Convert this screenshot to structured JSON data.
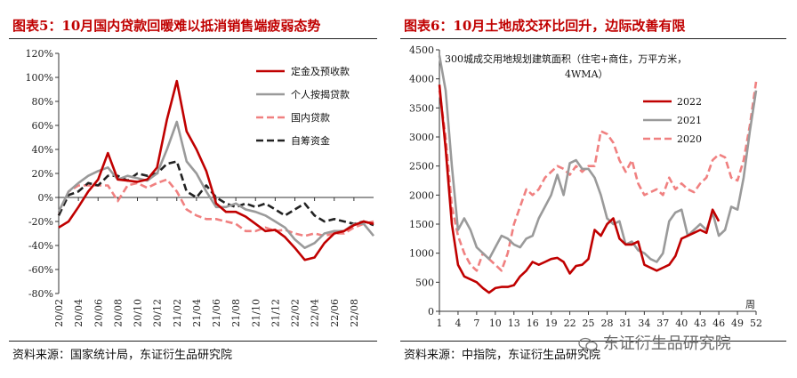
{
  "panels": [
    {
      "title": "图表5：10月国内贷款回暖难以抵消销售端疲弱态势",
      "source": "资料来源：国家统计局，东证衍生品研究院"
    },
    {
      "title": "图表6：10月土地成交环比回升，边际改善有限",
      "source": "资料来源：中指院，东证衍生品研究院"
    }
  ],
  "watermark": "东证衍生品研究院",
  "chart_data": [
    {
      "type": "line",
      "title": "",
      "ylim": [
        -80,
        120
      ],
      "yticks": [
        -80,
        -60,
        -40,
        -20,
        0,
        20,
        40,
        60,
        80,
        100,
        120
      ],
      "ytick_labels": [
        "-80%",
        "-60%",
        "-40%",
        "-20%",
        "0%",
        "20%",
        "40%",
        "60%",
        "80%",
        "100%",
        "120%"
      ],
      "x_start_month": "2020-02",
      "n_points": 33,
      "xtick_labels": [
        "20/02",
        "20/04",
        "20/06",
        "20/08",
        "20/10",
        "20/12",
        "21/02",
        "21/04",
        "21/06",
        "21/08",
        "21/10",
        "21/12",
        "22/02",
        "22/04",
        "22/06",
        "22/08"
      ],
      "series": [
        {
          "name": "定金及预收款",
          "color": "#c00000",
          "style": "solid",
          "values": [
            -25,
            -20,
            -8,
            5,
            15,
            37,
            15,
            14,
            13,
            15,
            25,
            65,
            97,
            55,
            40,
            22,
            -5,
            -12,
            -12,
            -16,
            -22,
            -28,
            -27,
            -33,
            -42,
            -52,
            -50,
            -38,
            -30,
            -28,
            -23,
            -20,
            -22
          ]
        },
        {
          "name": "个人按揭贷款",
          "color": "#9a9a9a",
          "style": "solid",
          "values": [
            -12,
            5,
            12,
            18,
            22,
            25,
            15,
            18,
            16,
            14,
            20,
            40,
            63,
            30,
            20,
            5,
            -8,
            -8,
            -5,
            -10,
            -12,
            -15,
            -20,
            -25,
            -35,
            -42,
            -38,
            -30,
            -28,
            -28,
            -22,
            -22,
            -32
          ]
        },
        {
          "name": "国内贷款",
          "color": "#f08080",
          "style": "dash",
          "values": [
            -15,
            5,
            10,
            10,
            10,
            10,
            -3,
            10,
            12,
            8,
            12,
            15,
            5,
            -10,
            -15,
            -18,
            -18,
            -20,
            -22,
            -28,
            -28,
            -25,
            -28,
            -27,
            -30,
            -32,
            -30,
            -32,
            -30,
            -30,
            -25,
            -22,
            -20
          ]
        },
        {
          "name": "自筹资金",
          "color": "#222222",
          "style": "dash",
          "values": [
            -15,
            2,
            5,
            12,
            10,
            18,
            18,
            14,
            20,
            18,
            20,
            28,
            30,
            5,
            0,
            10,
            0,
            -5,
            -8,
            -5,
            -8,
            -5,
            -10,
            -15,
            -10,
            -5,
            -15,
            -20,
            -18,
            -20,
            -22,
            -20,
            -23
          ]
        }
      ]
    },
    {
      "type": "line",
      "title": "300城成交用地规划建筑面积（住宅+商住，万平方米，4WMA）",
      "annotation_lines": [
        "300城成交用地规划建筑面积（住宅+商住，万平方米，",
        "4WMA）"
      ],
      "ylim": [
        0,
        4500
      ],
      "yticks": [
        0,
        500,
        1000,
        1500,
        2000,
        2500,
        3000,
        3500,
        4000,
        4500
      ],
      "xlim": [
        1,
        52
      ],
      "xticks": [
        1,
        4,
        7,
        10,
        13,
        16,
        19,
        22,
        25,
        28,
        31,
        34,
        37,
        40,
        43,
        46,
        49,
        52
      ],
      "xlabel": "周",
      "series": [
        {
          "name": "2022",
          "color": "#c00000",
          "style": "solid",
          "x": [
            1,
            2,
            3,
            4,
            5,
            6,
            7,
            8,
            9,
            10,
            11,
            12,
            13,
            14,
            15,
            16,
            17,
            18,
            19,
            20,
            21,
            22,
            23,
            24,
            25,
            26,
            27,
            28,
            29,
            30,
            31,
            32,
            33,
            34,
            35,
            36,
            37,
            38,
            39,
            40,
            41,
            42,
            43,
            44,
            45,
            46
          ],
          "values": [
            3900,
            2800,
            1500,
            800,
            600,
            550,
            500,
            400,
            320,
            400,
            420,
            420,
            450,
            600,
            700,
            850,
            800,
            850,
            900,
            920,
            850,
            650,
            780,
            800,
            900,
            1400,
            1300,
            1500,
            1600,
            1250,
            1150,
            1150,
            1200,
            800,
            750,
            700,
            750,
            800,
            950,
            1250,
            1300,
            1350,
            1400,
            1350,
            1750,
            1550
          ]
        },
        {
          "name": "2021",
          "color": "#9a9a9a",
          "style": "solid",
          "x": [
            1,
            2,
            3,
            4,
            5,
            6,
            7,
            8,
            9,
            10,
            11,
            12,
            13,
            14,
            15,
            16,
            17,
            18,
            19,
            20,
            21,
            22,
            23,
            24,
            25,
            26,
            27,
            28,
            29,
            30,
            31,
            32,
            33,
            34,
            35,
            36,
            37,
            38,
            39,
            40,
            41,
            42,
            43,
            44,
            45,
            46,
            47,
            48,
            49,
            50,
            51,
            52
          ],
          "values": [
            4400,
            3800,
            2500,
            1400,
            1600,
            1400,
            1100,
            1000,
            900,
            1100,
            1300,
            1250,
            1150,
            1100,
            1250,
            1300,
            1600,
            1800,
            2000,
            2350,
            2000,
            2550,
            2600,
            2450,
            2450,
            2300,
            2000,
            1600,
            1500,
            1550,
            1150,
            1200,
            1050,
            1000,
            900,
            850,
            1000,
            1550,
            1700,
            1750,
            1300,
            1400,
            1500,
            1400,
            1700,
            1300,
            1400,
            1800,
            1750,
            2300,
            3100,
            3800
          ]
        },
        {
          "name": "2020",
          "color": "#f08080",
          "style": "dash",
          "x": [
            1,
            2,
            3,
            4,
            5,
            6,
            7,
            8,
            9,
            10,
            11,
            12,
            13,
            14,
            15,
            16,
            17,
            18,
            19,
            20,
            21,
            22,
            23,
            24,
            25,
            26,
            27,
            28,
            29,
            30,
            31,
            32,
            33,
            34,
            35,
            36,
            37,
            38,
            39,
            40,
            41,
            42,
            43,
            44,
            45,
            46,
            47,
            48,
            49,
            50,
            51,
            52
          ],
          "values": [
            3800,
            3000,
            1800,
            1300,
            1000,
            800,
            700,
            1000,
            900,
            800,
            700,
            1000,
            1500,
            1800,
            2100,
            2000,
            2100,
            2300,
            2400,
            2500,
            2450,
            2350,
            2500,
            2400,
            2500,
            2500,
            3100,
            3050,
            2900,
            2600,
            2400,
            2600,
            2200,
            2000,
            2050,
            2100,
            2000,
            2300,
            2100,
            2200,
            2100,
            2050,
            2200,
            2300,
            2600,
            2700,
            2650,
            2300,
            2250,
            2600,
            3200,
            3950
          ]
        }
      ]
    }
  ]
}
